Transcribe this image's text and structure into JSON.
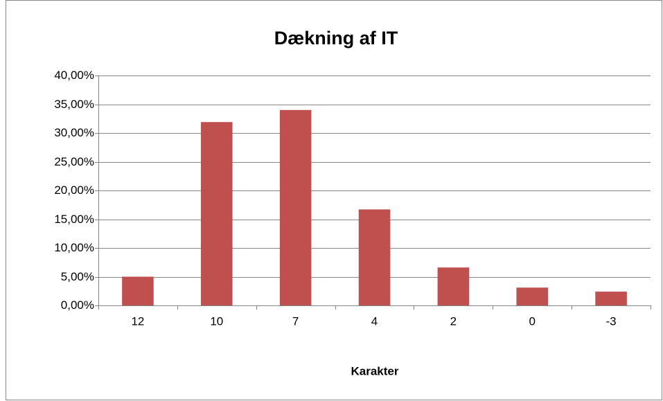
{
  "chart_data": {
    "type": "bar",
    "title": "Dækning af IT",
    "x_label": "Karakter",
    "categories": [
      "12",
      "10",
      "7",
      "4",
      "2",
      "0",
      "-3"
    ],
    "values": [
      5.0,
      31.9,
      34.0,
      16.7,
      6.6,
      3.1,
      2.4
    ],
    "color": "#c0504d",
    "ylim": [
      0,
      40
    ],
    "yticks": [
      {
        "value": 0,
        "label": "0,00%"
      },
      {
        "value": 5,
        "label": "5,00%"
      },
      {
        "value": 10,
        "label": "10,00%"
      },
      {
        "value": 15,
        "label": "15,00%"
      },
      {
        "value": 20,
        "label": "20,00%"
      },
      {
        "value": 25,
        "label": "25,00%"
      },
      {
        "value": 30,
        "label": "30,00%"
      },
      {
        "value": 35,
        "label": "35,00%"
      },
      {
        "value": 40,
        "label": "40,00%"
      }
    ],
    "grid": true
  }
}
